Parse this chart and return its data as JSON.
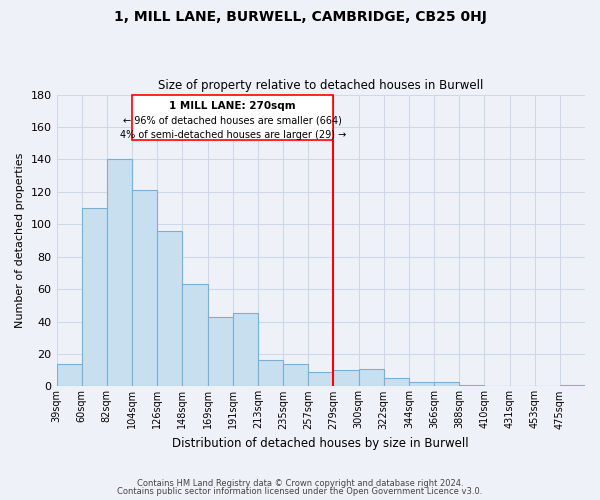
{
  "title": "1, MILL LANE, BURWELL, CAMBRIDGE, CB25 0HJ",
  "subtitle": "Size of property relative to detached houses in Burwell",
  "xlabel": "Distribution of detached houses by size in Burwell",
  "ylabel": "Number of detached properties",
  "footer_line1": "Contains HM Land Registry data © Crown copyright and database right 2024.",
  "footer_line2": "Contains public sector information licensed under the Open Government Licence v3.0.",
  "categories": [
    "39sqm",
    "60sqm",
    "82sqm",
    "104sqm",
    "126sqm",
    "148sqm",
    "169sqm",
    "191sqm",
    "213sqm",
    "235sqm",
    "257sqm",
    "279sqm",
    "300sqm",
    "322sqm",
    "344sqm",
    "366sqm",
    "388sqm",
    "410sqm",
    "431sqm",
    "453sqm",
    "475sqm"
  ],
  "values": [
    14,
    110,
    140,
    121,
    96,
    63,
    43,
    45,
    16,
    14,
    9,
    10,
    11,
    5,
    3,
    3,
    1,
    0,
    0,
    0,
    1
  ],
  "bar_color": "#c8dff0",
  "bar_edge_color": "#7bafd4",
  "vline_x_index": 11,
  "vline_color": "red",
  "annotation_title": "1 MILL LANE: 270sqm",
  "annotation_line1": "← 96% of detached houses are smaller (664)",
  "annotation_line2": "4% of semi-detached houses are larger (29) →",
  "annotation_box_color": "white",
  "annotation_box_edge_color": "red",
  "ylim": [
    0,
    180
  ],
  "yticks": [
    0,
    20,
    40,
    60,
    80,
    100,
    120,
    140,
    160,
    180
  ],
  "grid_color": "#d0d8e8",
  "background_color": "#eef2f8"
}
